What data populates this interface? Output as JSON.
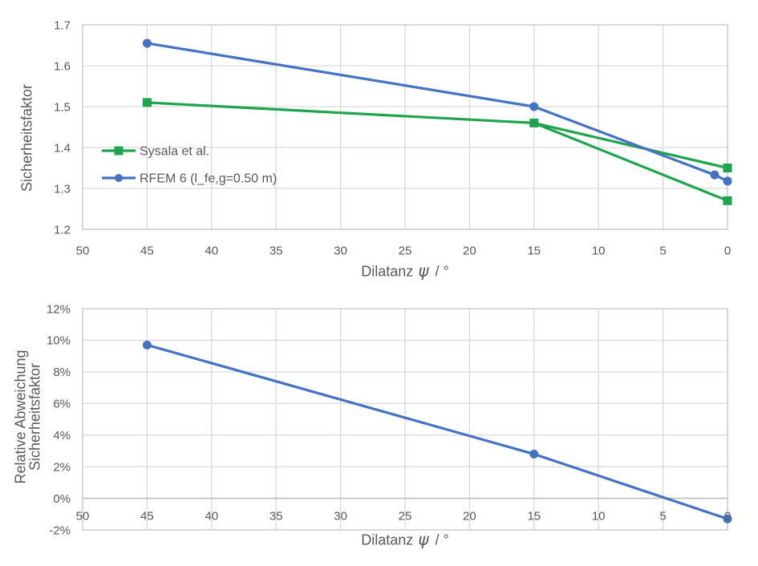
{
  "colors": {
    "background": "#FFFFFF",
    "gridline": "#D9D9D9",
    "plot_border": "#C9C9C9",
    "zero_axis_line": "#BFBFBF",
    "text": "#595959",
    "series_green": "#1FA44E",
    "series_blue": "#4472C4"
  },
  "axis_title": {
    "text": "Dilatanz ψ / °",
    "pre": "Dilatanz",
    "sym": "ψ",
    "post": "/ °"
  },
  "chart_data": [
    {
      "type": "line",
      "title": "",
      "xlabel": "Dilatanz ψ / °",
      "ylabel": "Sicherheitsfaktor",
      "ylabel_lines": [
        "Sicherheitsfaktor"
      ],
      "xlim": [
        50,
        0
      ],
      "ylim": [
        1.2,
        1.7
      ],
      "grid": true,
      "legend_position": "inside middle-left",
      "x_axis": {
        "reversed": true,
        "ticks": [
          50,
          45,
          40,
          35,
          30,
          25,
          20,
          15,
          10,
          5,
          0
        ],
        "tick_labels": [
          "50",
          "45",
          "40",
          "35",
          "30",
          "25",
          "20",
          "15",
          "10",
          "5",
          "0"
        ]
      },
      "y_axis": {
        "ticks": [
          1.7,
          1.6,
          1.5,
          1.4,
          1.3,
          1.2
        ],
        "tick_labels": [
          "1.7",
          "1.6",
          "1.5",
          "1.4",
          "1.3",
          "1.2"
        ]
      },
      "series": [
        {
          "name": "Sysala et al.",
          "color": "#1FA44E",
          "marker": "square",
          "points": [
            [
              45,
              1.51
            ],
            [
              15,
              1.46
            ],
            [
              0,
              1.35
            ],
            [
              0,
              1.27
            ]
          ],
          "segments": [
            [
              [
                45,
                1.51
              ],
              [
                15,
                1.46
              ],
              [
                0,
                1.35
              ]
            ],
            [
              [
                15,
                1.46
              ],
              [
                0,
                1.27
              ]
            ]
          ]
        },
        {
          "name": "RFEM 6 (l_fe,g=0.50 m)",
          "color": "#4472C4",
          "marker": "circle",
          "points": [
            [
              45,
              1.655
            ],
            [
              15,
              1.5
            ],
            [
              1,
              1.333
            ],
            [
              0,
              1.318
            ]
          ],
          "segments": [
            [
              [
                45,
                1.655
              ],
              [
                15,
                1.5
              ],
              [
                1,
                1.333
              ],
              [
                0,
                1.318
              ]
            ]
          ]
        }
      ]
    },
    {
      "type": "line",
      "title": "",
      "xlabel": "Dilatanz ψ / °",
      "ylabel": "Relative Abweichung Sicherheitsfaktor",
      "ylabel_lines": [
        "Relative Abweichung",
        "Sicherheitsfaktor"
      ],
      "xlim": [
        50,
        0
      ],
      "ylim": [
        -2,
        12
      ],
      "y_unit": "%",
      "grid": true,
      "legend_position": "none",
      "x_axis": {
        "reversed": true,
        "ticks": [
          50,
          45,
          40,
          35,
          30,
          25,
          20,
          15,
          10,
          5,
          0
        ],
        "tick_labels": [
          "50",
          "45",
          "40",
          "35",
          "30",
          "25",
          "20",
          "15",
          "10",
          "5",
          "0"
        ],
        "crosses_y_at": 0
      },
      "y_axis": {
        "ticks": [
          12,
          10,
          8,
          6,
          4,
          2,
          0,
          -2
        ],
        "tick_labels": [
          "12%",
          "10%",
          "8%",
          "6%",
          "4%",
          "2%",
          "0%",
          "-2%"
        ]
      },
      "series": [
        {
          "name": "",
          "color": "#4472C4",
          "marker": "circle",
          "points": [
            [
              45,
              9.7
            ],
            [
              15,
              2.8
            ],
            [
              0,
              -1.3
            ]
          ],
          "segments": [
            [
              [
                45,
                9.7
              ],
              [
                15,
                2.8
              ],
              [
                0,
                -1.3
              ]
            ]
          ]
        }
      ]
    }
  ]
}
